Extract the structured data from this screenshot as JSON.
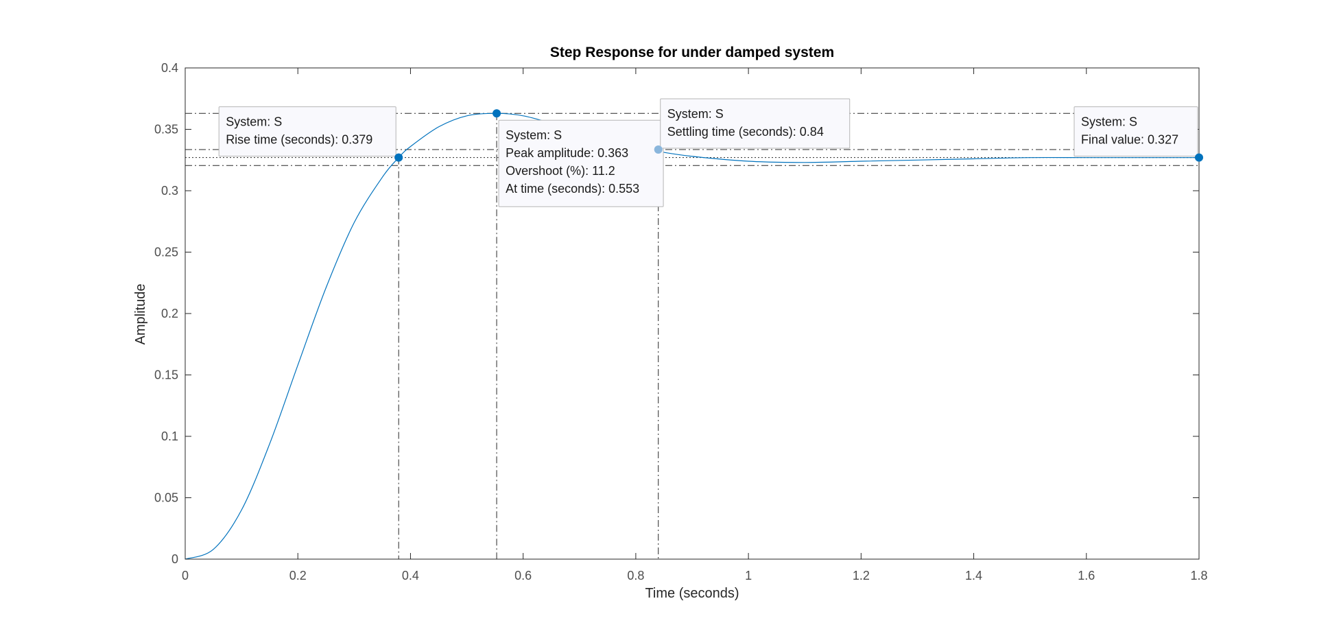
{
  "colors": {
    "line": "#0072bd",
    "marker": "#0072bd",
    "marker_settling": "#8ab6dc",
    "axes": "#262626",
    "guide": "#262626",
    "tip_bg": "#f9f9fd",
    "tip_border": "#b5b5b5"
  },
  "chart_data": {
    "type": "line",
    "title": "Step Response for under damped system",
    "xlabel": "Time (seconds)",
    "ylabel": "Amplitude",
    "xlim": [
      0,
      1.8
    ],
    "ylim": [
      0,
      0.4
    ],
    "xticks": [
      0,
      0.2,
      0.4,
      0.6,
      0.8,
      1,
      1.2,
      1.4,
      1.6,
      1.8
    ],
    "xtick_labels": [
      "0",
      "0.2",
      "0.4",
      "0.6",
      "0.8",
      "1",
      "1.2",
      "1.4",
      "1.6",
      "1.8"
    ],
    "yticks": [
      0,
      0.05,
      0.1,
      0.15,
      0.2,
      0.25,
      0.3,
      0.35,
      0.4
    ],
    "ytick_labels": [
      "0",
      "0.05",
      "0.1",
      "0.15",
      "0.2",
      "0.25",
      "0.3",
      "0.35",
      "0.4"
    ],
    "grid": false,
    "series": [
      {
        "x": [
          0,
          0.05,
          0.1,
          0.15,
          0.2,
          0.25,
          0.3,
          0.35,
          0.379,
          0.4,
          0.45,
          0.5,
          0.553,
          0.6,
          0.65,
          0.7,
          0.75,
          0.8,
          0.84,
          0.9,
          1.0,
          1.1,
          1.2,
          1.3,
          1.4,
          1.5,
          1.6,
          1.7,
          1.8
        ],
        "y": [
          0,
          0.008,
          0.04,
          0.094,
          0.158,
          0.221,
          0.274,
          0.311,
          0.327,
          0.336,
          0.352,
          0.361,
          0.363,
          0.361,
          0.355,
          0.348,
          0.341,
          0.336,
          0.332,
          0.328,
          0.324,
          0.323,
          0.324,
          0.325,
          0.326,
          0.327,
          0.327,
          0.327,
          0.327
        ]
      }
    ],
    "characteristics": {
      "final_value": 0.327,
      "settling_band": [
        0.3205,
        0.3335
      ],
      "rise_time": 0.379,
      "peak_amplitude": 0.363,
      "peak_time": 0.553,
      "overshoot_pct": 11.2,
      "settling_time": 0.84
    },
    "datatips": [
      {
        "id": "rise",
        "x": 0.379,
        "y": 0.327,
        "lines": [
          "System: S",
          "Rise time (seconds): 0.379"
        ]
      },
      {
        "id": "peak",
        "x": 0.553,
        "y": 0.363,
        "lines": [
          "System: S",
          "Peak amplitude: 0.363",
          "Overshoot (%): 11.2",
          "At time (seconds): 0.553"
        ]
      },
      {
        "id": "settling",
        "x": 0.84,
        "y": 0.3335,
        "lines": [
          "System: S",
          "Settling time (seconds): 0.84"
        ]
      },
      {
        "id": "final",
        "x": 1.8,
        "y": 0.327,
        "lines": [
          "System: S",
          "Final value: 0.327"
        ]
      }
    ]
  }
}
